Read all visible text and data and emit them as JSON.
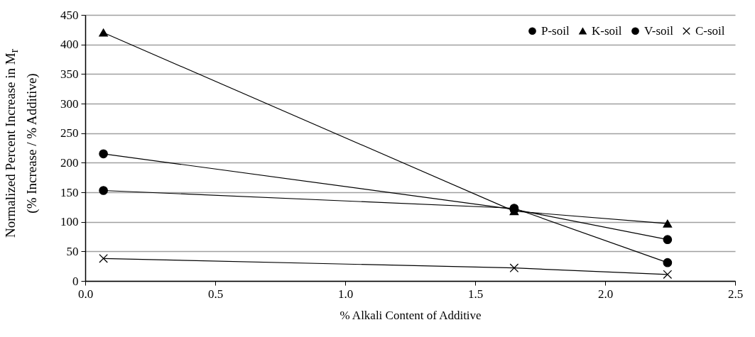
{
  "chart_data": {
    "type": "line",
    "xlabel": "% Alkali Content of Additive",
    "ylabel": "Normalized Percent Increase in M$_{r}$\n(% Increase / % Additive)",
    "xlim": [
      0,
      2.5
    ],
    "xticks": [
      {
        "value": 0,
        "label": "0.0"
      },
      0.5,
      {
        "value": 1,
        "label": "1.0"
      },
      1.5,
      {
        "value": 2,
        "label": "2.0"
      },
      2.5
    ],
    "ylim": [
      0,
      450
    ],
    "yticks": [
      0,
      50,
      100,
      150,
      200,
      250,
      300,
      350,
      400,
      450
    ],
    "grid": "y",
    "legend": "top right",
    "line_style": "solid",
    "series": [
      {
        "name": "P-soil",
        "color": "#000000",
        "marker": "circle",
        "x": [
          0.07,
          1.65,
          2.24
        ],
        "values": [
          153,
          123,
          31
        ]
      },
      {
        "name": "K-soil",
        "color": "#000000",
        "marker": "triangle",
        "x": [
          0.07,
          1.65,
          2.24
        ],
        "values": [
          420,
          118,
          97
        ]
      },
      {
        "name": "V-soil",
        "color": "#000000",
        "marker": "circle",
        "x": [
          0.07,
          1.65,
          2.24
        ],
        "values": [
          215,
          121,
          70
        ]
      },
      {
        "name": "C-soil",
        "color": "#000000",
        "marker": "cross",
        "x": [
          0.07,
          1.65,
          2.24
        ],
        "values": [
          38,
          22,
          11
        ]
      }
    ]
  }
}
